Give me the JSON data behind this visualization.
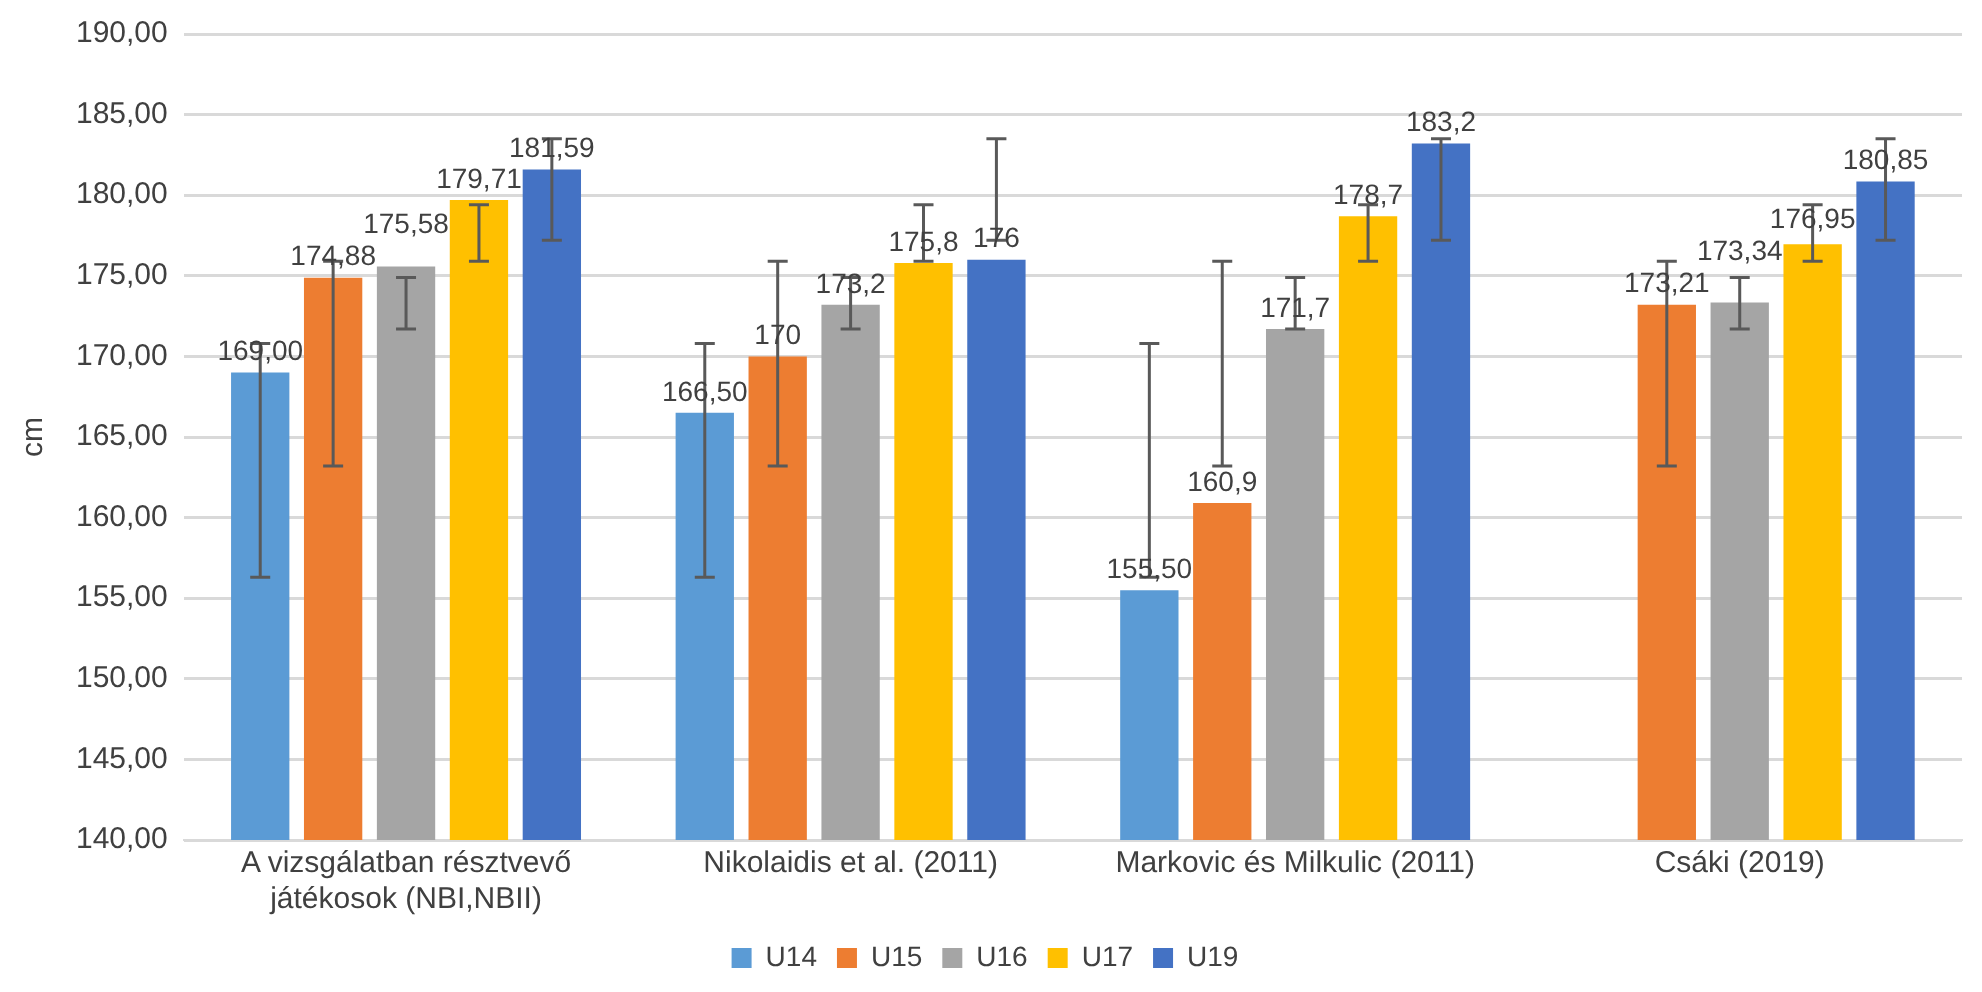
{
  "chart_data": {
    "type": "bar",
    "ylabel": "cm",
    "categories": [
      "A vizsgálatban résztvevő játékosok (NBI,NBII)",
      "Nikolaidis et al. (2011)",
      "Markovic és Milkulic (2011)",
      "Csáki (2019)"
    ],
    "series": [
      {
        "name": "U14",
        "color": "#5b9bd5",
        "values": [
          169,
          166.5,
          155.5,
          null
        ],
        "value_labels": [
          "169,00",
          "166,50",
          "155,50",
          null
        ],
        "errors": [
          [
            156.3,
            170.8
          ],
          [
            156.3,
            170.8
          ],
          [
            156.3,
            170.8
          ],
          null
        ]
      },
      {
        "name": "U15",
        "color": "#ed7d31",
        "values": [
          174.88,
          170,
          160.9,
          173.21
        ],
        "value_labels": [
          "174,88",
          "170",
          "160,9",
          "173,21"
        ],
        "errors": [
          [
            163.2,
            175.9
          ],
          [
            163.2,
            175.9
          ],
          [
            163.2,
            175.9
          ],
          [
            163.2,
            175.9
          ]
        ]
      },
      {
        "name": "U16",
        "color": "#a5a5a5",
        "values": [
          175.58,
          173.2,
          171.7,
          173.34
        ],
        "value_labels": [
          "175,58",
          "173,2",
          "171,7",
          "173,34"
        ],
        "errors": [
          [
            171.7,
            174.9
          ],
          [
            171.7,
            174.9
          ],
          [
            171.7,
            174.9
          ],
          [
            171.7,
            174.9
          ]
        ]
      },
      {
        "name": "U17",
        "color": "#ffc000",
        "values": [
          179.71,
          175.8,
          178.7,
          176.95
        ],
        "value_labels": [
          "179,71",
          "175,8",
          "178,7",
          "176,95"
        ],
        "errors": [
          [
            175.9,
            179.4
          ],
          [
            175.9,
            179.4
          ],
          [
            175.9,
            179.4
          ],
          [
            175.9,
            179.4
          ]
        ]
      },
      {
        "name": "U19",
        "color": "#4472c4",
        "values": [
          181.59,
          176,
          183.2,
          180.85
        ],
        "value_labels": [
          "181,59",
          "176",
          "183,2",
          "180,85"
        ],
        "errors": [
          [
            177.2,
            183.5
          ],
          [
            177.2,
            183.5
          ],
          [
            177.2,
            183.5
          ],
          [
            177.2,
            183.5
          ]
        ]
      }
    ],
    "ylim": [
      140,
      190
    ],
    "yticks": [
      {
        "value": 140,
        "label": "140,00"
      },
      {
        "value": 145,
        "label": "145,00"
      },
      {
        "value": 150,
        "label": "150,00"
      },
      {
        "value": 155,
        "label": "155,00"
      },
      {
        "value": 160,
        "label": "160,00"
      },
      {
        "value": 165,
        "label": "165,00"
      },
      {
        "value": 170,
        "label": "170,00"
      },
      {
        "value": 175,
        "label": "175,00"
      },
      {
        "value": 180,
        "label": "180,00"
      },
      {
        "value": 185,
        "label": "185,00"
      },
      {
        "value": 190,
        "label": "190,00"
      }
    ],
    "grid": "y",
    "legend": "bottom"
  }
}
